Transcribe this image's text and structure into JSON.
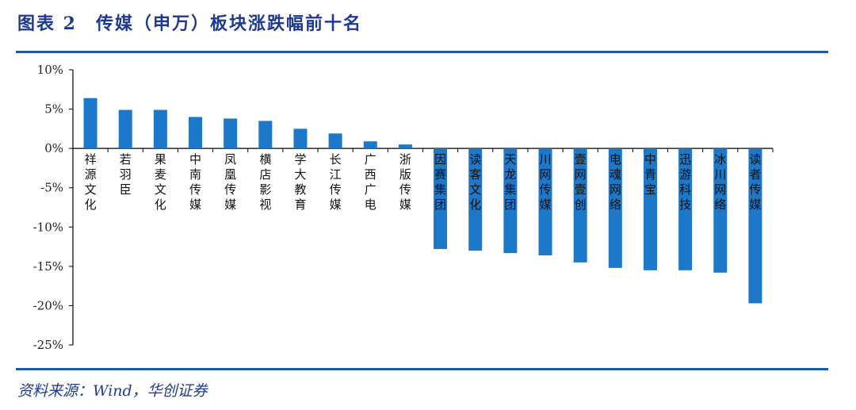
{
  "figure": {
    "title": "图表 2　传媒（申万）板块涨跌幅前十名",
    "source": "资料来源：Wind，华创证券"
  },
  "colors": {
    "bar": "#1d78c9",
    "rule": "#1f5aa6",
    "title": "#1d3a8f"
  },
  "chart_data": {
    "type": "bar",
    "title": "",
    "xlabel": "",
    "ylabel": "",
    "ylim": [
      -25,
      10
    ],
    "yticks": [
      "10%",
      "5%",
      "0%",
      "-5%",
      "-10%",
      "-15%",
      "-20%",
      "-25%"
    ],
    "grid": false,
    "categories": [
      "祥源文化",
      "若羽臣",
      "果麦文化",
      "中南传媒",
      "凤凰传媒",
      "横店影视",
      "学大教育",
      "长江传媒",
      "广西广电",
      "浙版传媒",
      "因赛集团",
      "读客文化",
      "天龙集团",
      "川网传媒",
      "壹网壹创",
      "电魂网络",
      "中青宝",
      "迅游科技",
      "冰川网络",
      "读者传媒"
    ],
    "values": [
      6.4,
      4.9,
      4.9,
      4.0,
      3.8,
      3.5,
      2.5,
      1.9,
      0.9,
      0.5,
      -12.8,
      -13.0,
      -13.3,
      -13.6,
      -14.5,
      -15.2,
      -15.5,
      -15.5,
      -15.8,
      -19.7
    ]
  }
}
